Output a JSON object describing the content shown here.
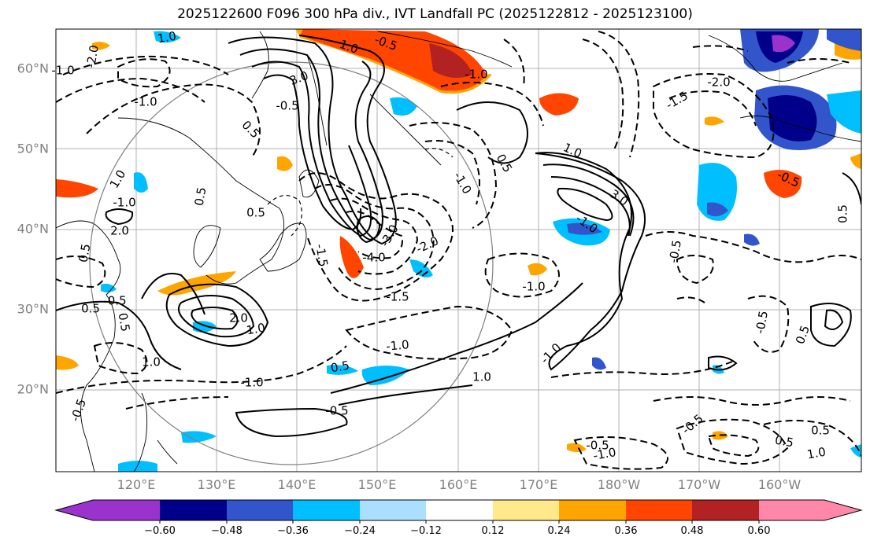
{
  "title": "2025122600 F096 300 hPa div., IVT Landfall PC (2025122812 - 2025123100)",
  "lon_ticks": [
    "120°E",
    "130°E",
    "140°E",
    "150°E",
    "160°E",
    "170°E",
    "180°W",
    "170°W",
    "160°W"
  ],
  "lat_ticks": [
    "60°N",
    "50°N",
    "40°N",
    "30°N",
    "20°N"
  ],
  "colorbar": {
    "colors": [
      "#9933cc",
      "#00008b",
      "#3355cc",
      "#00bfff",
      "#aadfff",
      "#ffffff",
      "#ffe98a",
      "#ffa500",
      "#ff4500",
      "#b22222",
      "#ff88aa"
    ],
    "ticks": [
      "−0.60",
      "−0.48",
      "−0.36",
      "−0.24",
      "−0.12",
      "0.12",
      "0.24",
      "0.36",
      "0.48",
      "0.60"
    ]
  },
  "contour_labels": [
    {
      "text": "1.0"
    },
    {
      "text": "-2.0"
    },
    {
      "text": "-1.0"
    },
    {
      "text": "-1.0"
    },
    {
      "text": "-0.5"
    },
    {
      "text": "-1.0"
    },
    {
      "text": "3.0"
    },
    {
      "text": "1.0"
    },
    {
      "text": "0.5"
    },
    {
      "text": "-0.5"
    },
    {
      "text": "-4.0"
    },
    {
      "text": "-3.0"
    },
    {
      "text": "-2.0"
    },
    {
      "text": "-1.5"
    },
    {
      "text": "-1.0"
    },
    {
      "text": "0.5"
    },
    {
      "text": "0.5"
    },
    {
      "text": "2.0"
    },
    {
      "text": "-1.0"
    },
    {
      "text": "1.0"
    },
    {
      "text": "3.0"
    },
    {
      "text": "-0.5"
    },
    {
      "text": "0.5"
    },
    {
      "text": "-1.0"
    },
    {
      "text": "-2.0"
    },
    {
      "text": "-1.5"
    },
    {
      "text": "-1.5"
    },
    {
      "text": "-1.0"
    },
    {
      "text": "0.5"
    },
    {
      "text": "-1.0"
    },
    {
      "text": "1.0"
    },
    {
      "text": "1.0"
    },
    {
      "text": "-0.5"
    },
    {
      "text": "0.5"
    },
    {
      "text": "-0.5"
    },
    {
      "text": "0.5"
    },
    {
      "text": "-1.0"
    },
    {
      "text": "1.0"
    },
    {
      "text": "0.5"
    },
    {
      "text": "2.0"
    },
    {
      "text": "1.0"
    },
    {
      "text": "-0.5"
    },
    {
      "text": "-1.0"
    },
    {
      "text": "0.5"
    },
    {
      "text": "-0.5"
    },
    {
      "text": "0.5"
    },
    {
      "text": "-0.5"
    },
    {
      "text": "-1.0"
    },
    {
      "text": "0.5"
    },
    {
      "text": "-0.5"
    },
    {
      "text": "1.0"
    },
    {
      "text": "0.5"
    },
    {
      "text": "-0.5"
    }
  ]
}
